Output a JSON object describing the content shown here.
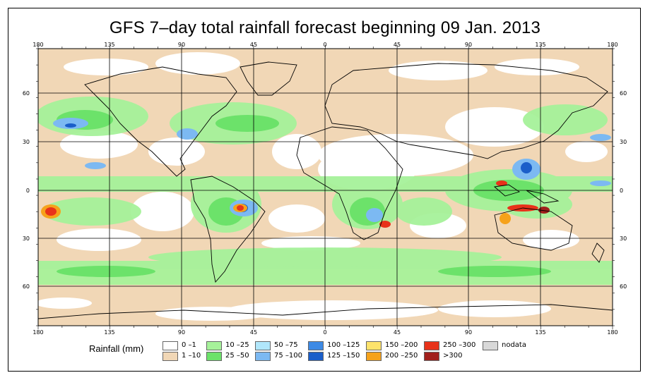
{
  "title": "GFS 7–day total rainfall forecast beginning 09 Jan. 2013",
  "axes": {
    "lon_labels": [
      "180",
      "135",
      "90",
      "45",
      "0",
      "45",
      "90",
      "135",
      "180"
    ],
    "lat_labels_left": [
      "60",
      "30",
      "0",
      "30",
      "60"
    ],
    "lat_labels_right": [
      "60",
      "30",
      "0",
      "30",
      "60"
    ]
  },
  "legend": {
    "title": "Rainfall (mm)",
    "items": [
      {
        "label": "0 –1",
        "color": "#ffffff"
      },
      {
        "label": "1 –10",
        "color": "#f1d7b6"
      },
      {
        "label": "10 –25",
        "color": "#a6f29a"
      },
      {
        "label": "25 –50",
        "color": "#6ce26a"
      },
      {
        "label": "50 –75",
        "color": "#b1e7fb"
      },
      {
        "label": "75 –100",
        "color": "#7cb9f2"
      },
      {
        "label": "100 –125",
        "color": "#3d8ae5"
      },
      {
        "label": "125 –150",
        "color": "#1a5ec9"
      },
      {
        "label": "150 –200",
        "color": "#fde36c"
      },
      {
        "label": "200 –250",
        "color": "#f6a21b"
      },
      {
        "label": "250 –300",
        "color": "#e8321a"
      },
      {
        "label": ">300",
        "color": "#a1201c"
      },
      {
        "label": "nodata",
        "color": "#d8d8d8"
      }
    ]
  }
}
